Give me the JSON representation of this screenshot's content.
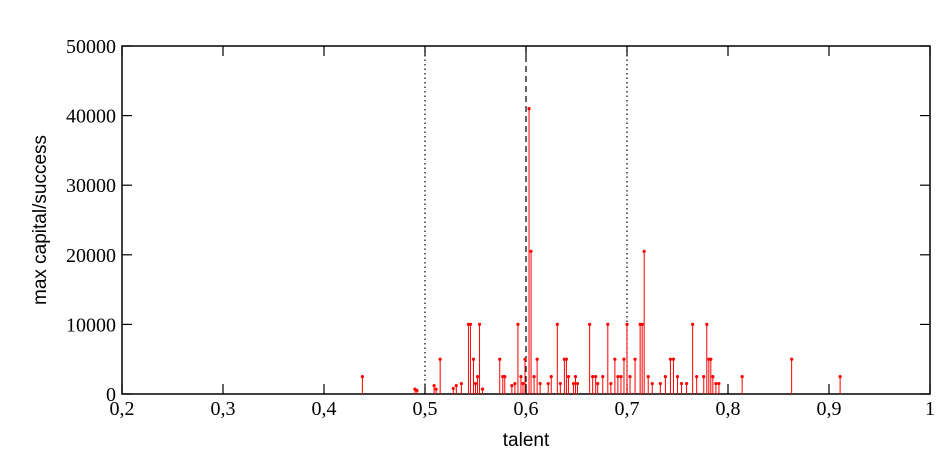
{
  "chart_data": {
    "type": "stem",
    "xlabel": "talent",
    "ylabel": "max capital/success",
    "xlim": [
      0.2,
      1
    ],
    "ylim": [
      0,
      50000
    ],
    "xticks": [
      {
        "value": 0.2,
        "label": "0,2"
      },
      {
        "value": 0.3,
        "label": "0,3"
      },
      {
        "value": 0.4,
        "label": "0,4"
      },
      {
        "value": 0.5,
        "label": "0,5"
      },
      {
        "value": 0.6,
        "label": "0,6"
      },
      {
        "value": 0.7,
        "label": "0,7"
      },
      {
        "value": 0.8,
        "label": "0,8"
      },
      {
        "value": 0.9,
        "label": "0,9"
      },
      1
    ],
    "yticks": [
      0,
      10000,
      20000,
      30000,
      40000,
      50000
    ],
    "vlines": [
      {
        "value": 0.5,
        "style": "dotted"
      },
      {
        "value": 0.6,
        "style": "dashed"
      },
      {
        "value": 0.7,
        "style": "dotted"
      }
    ],
    "color": "#ff0000",
    "x": [
      0.438,
      0.49,
      0.492,
      0.509,
      0.511,
      0.515,
      0.528,
      0.531,
      0.536,
      0.543,
      0.545,
      0.548,
      0.55,
      0.552,
      0.554,
      0.557,
      0.574,
      0.577,
      0.579,
      0.586,
      0.589,
      0.592,
      0.595,
      0.597,
      0.599,
      0.603,
      0.605,
      0.608,
      0.611,
      0.614,
      0.622,
      0.625,
      0.631,
      0.634,
      0.638,
      0.64,
      0.642,
      0.647,
      0.649,
      0.651,
      0.663,
      0.666,
      0.669,
      0.671,
      0.676,
      0.681,
      0.684,
      0.688,
      0.691,
      0.694,
      0.697,
      0.7,
      0.703,
      0.708,
      0.713,
      0.715,
      0.717,
      0.721,
      0.725,
      0.733,
      0.738,
      0.743,
      0.746,
      0.75,
      0.754,
      0.759,
      0.765,
      0.769,
      0.776,
      0.779,
      0.781,
      0.783,
      0.785,
      0.788,
      0.791,
      0.814,
      0.863,
      0.911
    ],
    "values": [
      2500,
      700,
      500,
      1200,
      700,
      5000,
      800,
      1200,
      1500,
      10000,
      10000,
      5000,
      1500,
      2500,
      10000,
      700,
      5000,
      2500,
      2500,
      1200,
      1500,
      10000,
      2500,
      1500,
      5000,
      41000,
      20500,
      2500,
      5000,
      1500,
      1500,
      2500,
      10000,
      1500,
      5000,
      5000,
      2500,
      1500,
      2500,
      1500,
      10000,
      2500,
      2500,
      1500,
      2500,
      10000,
      1500,
      5000,
      2500,
      2500,
      5000,
      10000,
      2500,
      5000,
      10000,
      10000,
      20500,
      2500,
      1500,
      1500,
      2500,
      5000,
      5000,
      2500,
      1500,
      1500,
      10000,
      2500,
      2500,
      10000,
      5000,
      5000,
      2500,
      1500,
      1500,
      2500,
      5000,
      2500
    ]
  }
}
